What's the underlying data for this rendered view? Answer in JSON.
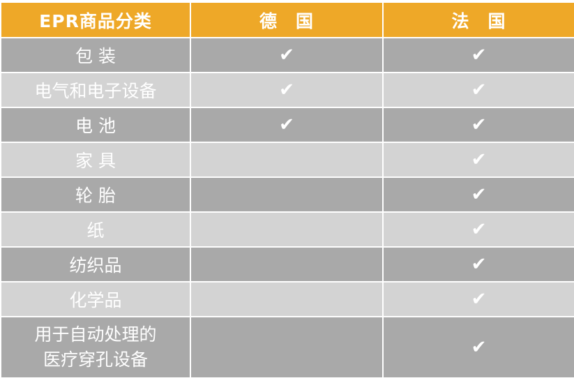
{
  "header": {
    "category": "EPR商品分类",
    "germany": "德　国",
    "france": "法　国"
  },
  "check_symbol": "✔",
  "colors": {
    "header": "#eea828",
    "row_dark": "#a9a9a9",
    "row_light": "#d3d3d3",
    "text": "#ffffff"
  },
  "rows": [
    {
      "category": "包 装",
      "germany": true,
      "france": true
    },
    {
      "category": "电气和电子设备",
      "germany": true,
      "france": true
    },
    {
      "category": "电 池",
      "germany": true,
      "france": true
    },
    {
      "category": "家 具",
      "germany": false,
      "france": true
    },
    {
      "category": "轮 胎",
      "germany": false,
      "france": true
    },
    {
      "category": "纸",
      "germany": false,
      "france": true
    },
    {
      "category": "纺织品",
      "germany": false,
      "france": true
    },
    {
      "category": "化学品",
      "germany": false,
      "france": true
    },
    {
      "category": "用于自动处理的医疗穿孔设备",
      "category_lines": [
        "用于自动处理的",
        "医疗穿孔设备"
      ],
      "germany": false,
      "france": true
    }
  ]
}
